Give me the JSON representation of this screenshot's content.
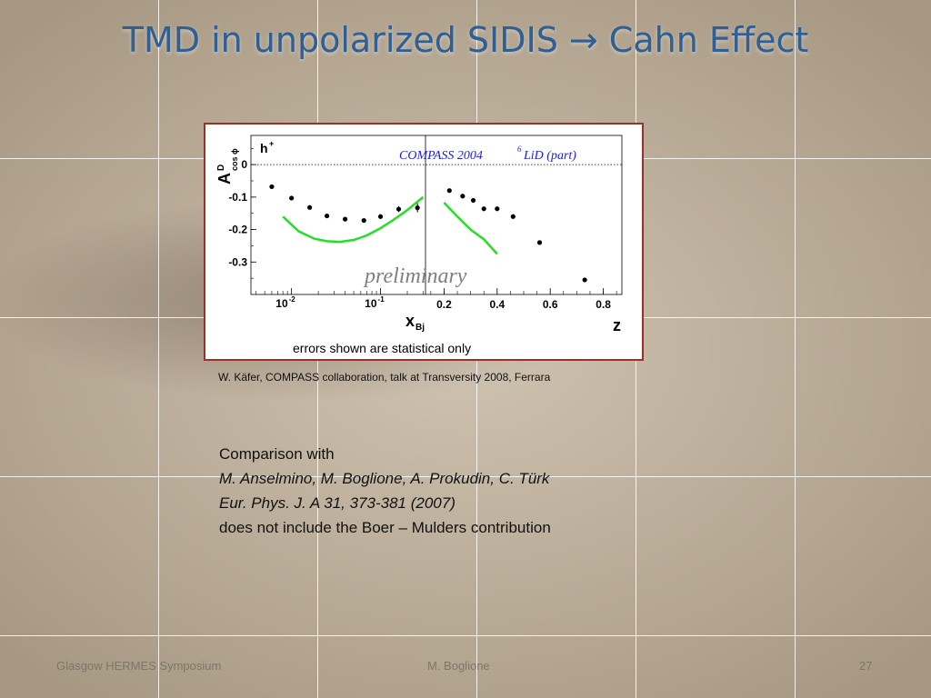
{
  "slide": {
    "title": "TMD in unpolarized SIDIS → Cahn Effect",
    "caption": "W. Käfer, COMPASS collaboration, talk at Transversity 2008, Ferrara",
    "comparison": {
      "line1": "Comparison with",
      "line2": "M. Anselmino, M. Boglione, A. Prokudin, C. Türk",
      "line3": "Eur. Phys. J. A 31, 373-381 (2007)",
      "line4": "does not include the Boer – Mulders  contribution"
    },
    "footer": {
      "left": "Glasgow HERMES Symposium",
      "center": "M. Boglione",
      "right": "27"
    }
  },
  "chart_data": [
    {
      "type": "scatter",
      "panel": "left",
      "ylabel_main": "A",
      "ylabel_super": "D",
      "ylabel_sub": "cos ϕ",
      "xlabel_main": "x",
      "xlabel_sub": "Bj",
      "hadron_main": "h",
      "hadron_super": "+",
      "x_scale": "log",
      "xlim": [
        0.0035,
        0.32
      ],
      "ylim": [
        -0.4,
        0.09
      ],
      "x_ticks": [
        {
          "value": 0.01,
          "base": "10",
          "exp": "-2"
        },
        {
          "value": 0.1,
          "base": "10",
          "exp": "-1"
        }
      ],
      "y_ticks": [
        {
          "value": 0,
          "label": "0"
        },
        {
          "value": -0.1,
          "label": "-0.1"
        },
        {
          "value": -0.2,
          "label": "-0.2"
        },
        {
          "value": -0.3,
          "label": "-0.3"
        }
      ],
      "points": {
        "x": [
          0.006,
          0.01,
          0.016,
          0.025,
          0.04,
          0.065,
          0.1,
          0.16,
          0.26
        ],
        "y": [
          -0.068,
          -0.103,
          -0.132,
          -0.158,
          -0.168,
          -0.172,
          -0.16,
          -0.137,
          -0.133
        ],
        "err": [
          0.004,
          0.004,
          0.004,
          0.004,
          0.004,
          0.005,
          0.006,
          0.009,
          0.014
        ]
      },
      "model_curve": {
        "x": [
          0.008,
          0.012,
          0.018,
          0.025,
          0.035,
          0.05,
          0.07,
          0.1,
          0.14,
          0.2,
          0.3
        ],
        "y": [
          -0.16,
          -0.205,
          -0.228,
          -0.236,
          -0.238,
          -0.232,
          -0.218,
          -0.196,
          -0.17,
          -0.14,
          -0.1
        ],
        "color": "#22e022"
      }
    },
    {
      "type": "scatter",
      "panel": "right",
      "xlabel": "z",
      "xlim": [
        0.13,
        0.87
      ],
      "ylim": [
        -0.4,
        0.09
      ],
      "x_ticks": [
        {
          "value": 0.2,
          "label": "0.2"
        },
        {
          "value": 0.4,
          "label": "0.4"
        },
        {
          "value": 0.6,
          "label": "0.6"
        },
        {
          "value": 0.8,
          "label": "0.8"
        }
      ],
      "experiment": "COMPASS    2004 ",
      "target_super": "6",
      "target": "LiD (part)",
      "watermark": "preliminary",
      "points": {
        "x": [
          0.22,
          0.27,
          0.31,
          0.35,
          0.4,
          0.46,
          0.56,
          0.73
        ],
        "y": [
          -0.08,
          -0.097,
          -0.11,
          -0.136,
          -0.136,
          -0.16,
          -0.24,
          -0.355
        ]
      },
      "model_curve": {
        "x": [
          0.2,
          0.25,
          0.3,
          0.35,
          0.4
        ],
        "y": [
          -0.117,
          -0.16,
          -0.2,
          -0.23,
          -0.275
        ],
        "color": "#22e022"
      },
      "footnote": "errors shown are statistical only"
    }
  ]
}
